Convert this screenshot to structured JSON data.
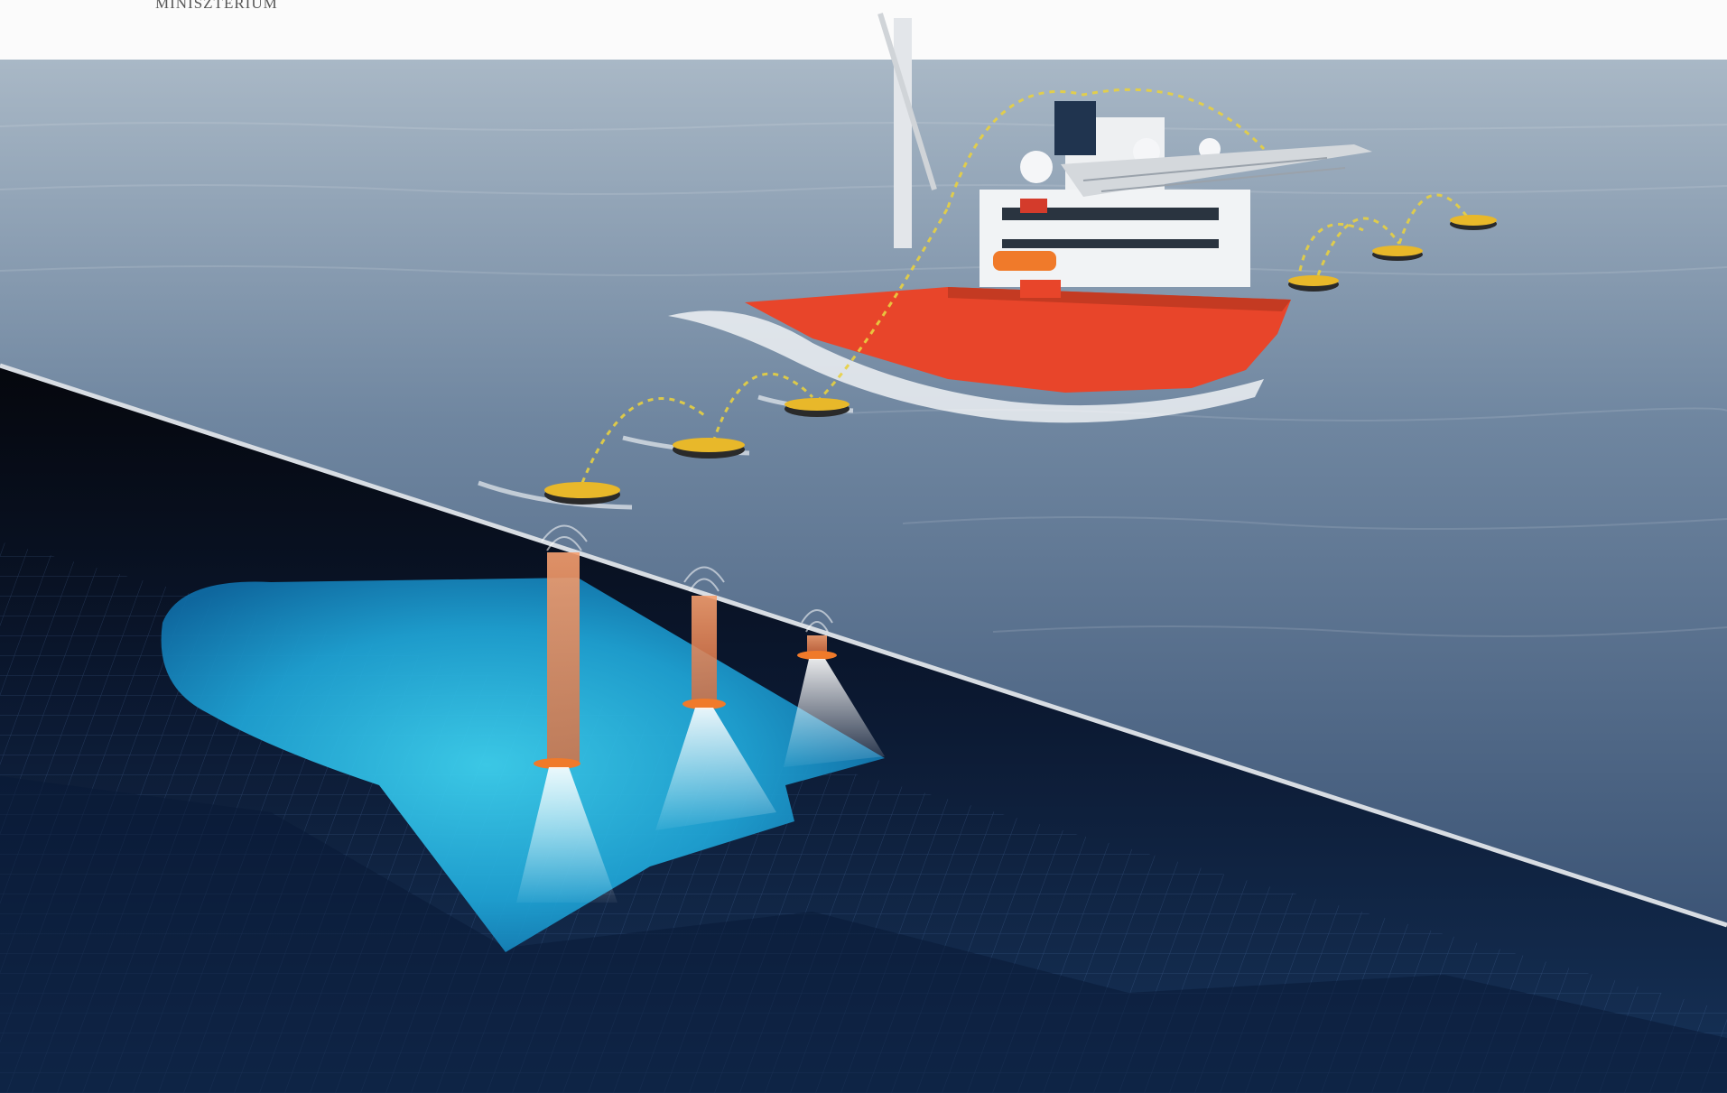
{
  "header": {
    "ministry_text": "MINISZTÉRIUM"
  },
  "colors": {
    "sky": "#f3f4f5",
    "sea_far": "#8ea1b3",
    "sea_near": "#2f4c6f",
    "ship_hull": "#e8452a",
    "drone_yellow": "#e8b82a",
    "seabed_dark": "#0c1a33",
    "scan_cyan": "#2ec7e8",
    "sonar_orange": "#f08a55"
  }
}
